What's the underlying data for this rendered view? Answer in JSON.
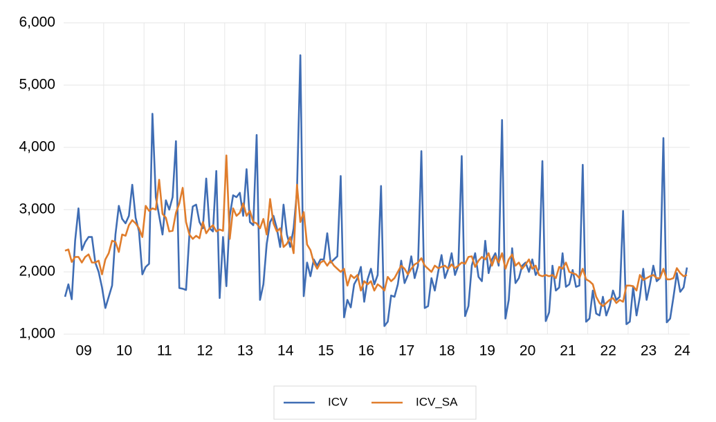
{
  "chart_data": {
    "type": "line",
    "categories": [
      null,
      null,
      null,
      null,
      null,
      null,
      "09",
      null,
      null,
      null,
      null,
      null,
      null,
      null,
      null,
      null,
      null,
      null,
      "10",
      null,
      null,
      null,
      null,
      null,
      null,
      null,
      null,
      null,
      null,
      null,
      "11",
      null,
      null,
      null,
      null,
      null,
      null,
      null,
      null,
      null,
      null,
      null,
      "12",
      null,
      null,
      null,
      null,
      null,
      null,
      null,
      null,
      null,
      null,
      null,
      "13",
      null,
      null,
      null,
      null,
      null,
      null,
      null,
      null,
      null,
      null,
      null,
      "14",
      null,
      null,
      null,
      null,
      null,
      null,
      null,
      null,
      null,
      null,
      null,
      "15",
      null,
      null,
      null,
      null,
      null,
      null,
      null,
      null,
      null,
      null,
      null,
      "16",
      null,
      null,
      null,
      null,
      null,
      null,
      null,
      null,
      null,
      null,
      null,
      "17",
      null,
      null,
      null,
      null,
      null,
      null,
      null,
      null,
      null,
      null,
      null,
      "18",
      null,
      null,
      null,
      null,
      null,
      null,
      null,
      null,
      null,
      null,
      null,
      "19",
      null,
      null,
      null,
      null,
      null,
      null,
      null,
      null,
      null,
      null,
      null,
      "20",
      null,
      null,
      null,
      null,
      null,
      null,
      null,
      null,
      null,
      null,
      null,
      "21",
      null,
      null,
      null,
      null,
      null,
      null,
      null,
      null,
      null,
      null,
      null,
      "22",
      null,
      null,
      null,
      null,
      null,
      null,
      null,
      null,
      null,
      null,
      null,
      "23",
      null,
      null,
      null,
      null,
      null,
      null,
      null,
      null,
      null,
      "24",
      null
    ],
    "series": [
      {
        "name": "ICV",
        "color": "#3f6db4",
        "values": [
          1600,
          1800,
          1560,
          2500,
          3020,
          2350,
          2480,
          2560,
          2560,
          2150,
          2000,
          1750,
          1420,
          1600,
          1780,
          2600,
          3060,
          2850,
          2780,
          2900,
          3400,
          2870,
          2650,
          1960,
          2080,
          2130,
          4540,
          3200,
          2900,
          2600,
          3150,
          3000,
          3200,
          4100,
          1740,
          1730,
          1710,
          2600,
          3050,
          3080,
          2800,
          2700,
          3500,
          2700,
          2650,
          3620,
          1580,
          2560,
          1770,
          2900,
          3230,
          3200,
          3270,
          2900,
          3650,
          2800,
          2750,
          4200,
          1550,
          1800,
          2450,
          2800,
          2900,
          2700,
          2400,
          3080,
          2600,
          2400,
          2700,
          3300,
          5480,
          1610,
          2150,
          1930,
          2200,
          2100,
          2200,
          2200,
          2620,
          2150,
          2200,
          2250,
          3540,
          1270,
          1550,
          1430,
          1800,
          1900,
          2080,
          1520,
          1880,
          2050,
          1800,
          1950,
          3380,
          1130,
          1200,
          1620,
          1600,
          1800,
          2180,
          1820,
          1950,
          2250,
          1900,
          2100,
          3940,
          1420,
          1450,
          1900,
          1700,
          2000,
          2270,
          1900,
          2050,
          2300,
          1950,
          2100,
          3860,
          1290,
          1450,
          2100,
          2300,
          1920,
          1850,
          2500,
          1980,
          2200,
          2300,
          2100,
          4440,
          1250,
          1550,
          2380,
          1820,
          1900,
          2100,
          2150,
          2000,
          2200,
          1950,
          2050,
          3780,
          1210,
          1350,
          2100,
          1700,
          1750,
          2300,
          1760,
          1800,
          2030,
          1760,
          1780,
          3720,
          1200,
          1250,
          1700,
          1330,
          1300,
          1600,
          1300,
          1450,
          1700,
          1550,
          1600,
          2980,
          1160,
          1200,
          1760,
          1300,
          1600,
          2050,
          1550,
          1800,
          2100,
          1850,
          1900,
          4150,
          1190,
          1250,
          1600,
          1980,
          1680,
          1750,
          2070
        ]
      },
      {
        "name": "ICV_SA",
        "color": "#e07d2c",
        "values": [
          2340,
          2360,
          2160,
          2240,
          2240,
          2150,
          2240,
          2280,
          2150,
          2150,
          2180,
          1960,
          2200,
          2300,
          2500,
          2480,
          2320,
          2600,
          2580,
          2750,
          2830,
          2780,
          2700,
          2560,
          3060,
          2980,
          3020,
          3000,
          3480,
          2930,
          2870,
          2650,
          2660,
          2950,
          3100,
          3350,
          2800,
          2600,
          2530,
          2580,
          2540,
          2800,
          2620,
          2700,
          2750,
          2650,
          2680,
          2660,
          3870,
          2530,
          3020,
          2900,
          2950,
          3100,
          2900,
          2980,
          2800,
          2780,
          2700,
          2850,
          2600,
          3170,
          2780,
          2650,
          2700,
          2400,
          2450,
          2560,
          2300,
          3400,
          2800,
          2960,
          2440,
          2350,
          2150,
          2050,
          2150,
          2180,
          2100,
          2180,
          2100,
          2050,
          2000,
          2050,
          1780,
          1950,
          1900,
          1950,
          1700,
          1850,
          1800,
          1850,
          1700,
          1800,
          1760,
          1700,
          1920,
          1850,
          1900,
          2000,
          2100,
          2050,
          1960,
          2050,
          2120,
          2150,
          2220,
          2100,
          2050,
          2000,
          2100,
          2060,
          2080,
          2100,
          2050,
          2120,
          2060,
          2100,
          2150,
          2130,
          2240,
          2250,
          2080,
          2180,
          2240,
          2200,
          2300,
          2100,
          2250,
          2150,
          2300,
          2050,
          2200,
          2280,
          2100,
          2150,
          2050,
          2120,
          2200,
          2050,
          2100,
          1950,
          1930,
          1950,
          1930,
          1950,
          1900,
          2080,
          2050,
          2150,
          2000,
          1980,
          1960,
          1900,
          2050,
          1880,
          1850,
          1800,
          1600,
          1500,
          1450,
          1500,
          1550,
          1580,
          1500,
          1550,
          1520,
          1780,
          1780,
          1770,
          1700,
          1950,
          1870,
          1900,
          1930,
          1950,
          1900,
          1900,
          2050,
          1880,
          1880,
          1900,
          2060,
          1980,
          1930,
          1950
        ]
      }
    ],
    "ylim": [
      1000,
      6000
    ],
    "yticks": [
      {
        "value": 1000,
        "label": "1,000"
      },
      {
        "value": 2000,
        "label": "2,000"
      },
      {
        "value": 3000,
        "label": "3,000"
      },
      {
        "value": 4000,
        "label": "4,000"
      },
      {
        "value": 5000,
        "label": "5,000"
      },
      {
        "value": 6000,
        "label": "6,000"
      }
    ],
    "grid": true
  }
}
